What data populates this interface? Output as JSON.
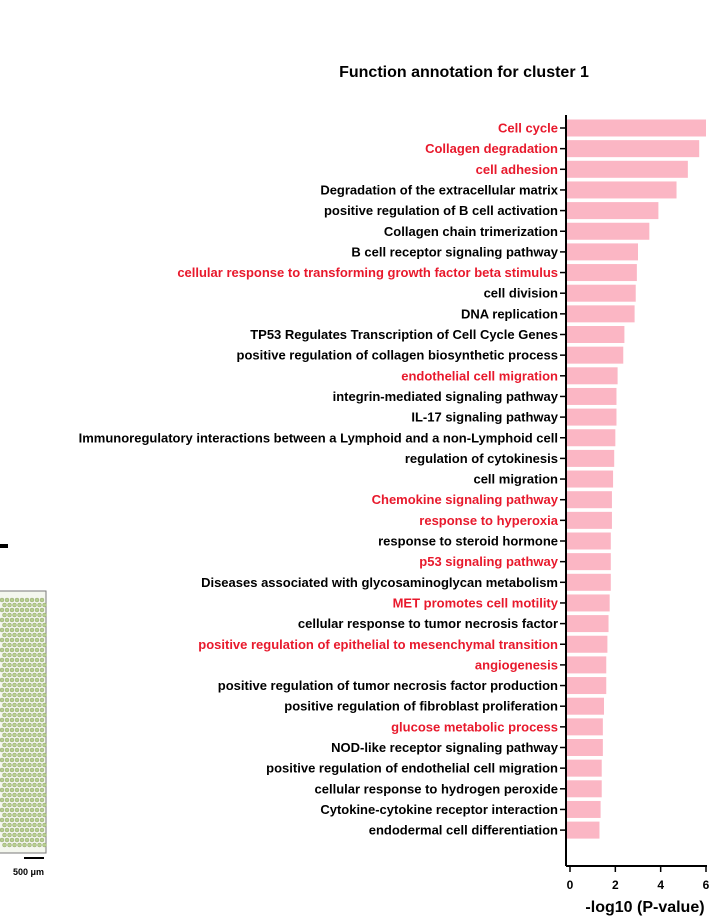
{
  "colors": {
    "bar": "#fbb6c4",
    "highlight_text": "#e8192c",
    "normal_text": "#000000",
    "inset_spots": "#b7cf8e",
    "inset_border": "#7a7a7a"
  },
  "inset": {
    "scale_label": "500 μm"
  },
  "chart_data": {
    "type": "bar",
    "orientation": "horizontal",
    "title": "Function annotation for cluster 1",
    "xlabel": "-log10 (P-value)",
    "ylabel": "",
    "xlim": [
      0,
      6
    ],
    "xticks": [
      "0",
      "2",
      "4",
      "6"
    ],
    "categories": [
      "Cell cycle",
      "Collagen degradation",
      "cell adhesion",
      "Degradation of the extracellular matrix",
      "positive regulation of B cell activation",
      "Collagen chain trimerization",
      "B cell receptor signaling pathway",
      "cellular response to transforming growth factor beta stimulus",
      "cell division",
      "DNA replication",
      "TP53 Regulates Transcription of Cell Cycle Genes",
      "positive regulation of collagen biosynthetic process",
      "endothelial cell migration",
      "integrin-mediated signaling pathway",
      "IL-17 signaling pathway",
      "Immunoregulatory interactions between a Lymphoid and a non-Lymphoid cell",
      "regulation of cytokinesis",
      "cell migration",
      "Chemokine signaling pathway",
      "response to hyperoxia",
      "response to steroid hormone",
      "p53 signaling pathway",
      "Diseases associated with glycosaminoglycan metabolism",
      "MET promotes cell motility",
      "cellular response to tumor necrosis factor",
      "positive regulation of epithelial to mesenchymal transition",
      "angiogenesis",
      "positive regulation of tumor necrosis factor production",
      "positive regulation of fibroblast proliferation",
      "glucose metabolic process",
      "NOD-like receptor signaling pathway",
      "positive regulation of endothelial cell migration",
      "cellular response to hydrogen peroxide",
      "Cytokine-cytokine receptor interaction",
      "endodermal cell differentiation"
    ],
    "values": [
      6.0,
      5.7,
      5.2,
      4.7,
      3.9,
      3.5,
      3.0,
      2.95,
      2.9,
      2.85,
      2.4,
      2.35,
      2.1,
      2.05,
      2.05,
      2.0,
      1.95,
      1.9,
      1.85,
      1.85,
      1.8,
      1.8,
      1.8,
      1.75,
      1.7,
      1.65,
      1.6,
      1.6,
      1.5,
      1.45,
      1.45,
      1.4,
      1.4,
      1.35,
      1.3
    ],
    "highlighted": [
      true,
      true,
      true,
      false,
      false,
      false,
      false,
      true,
      false,
      false,
      false,
      false,
      true,
      false,
      false,
      false,
      false,
      false,
      true,
      true,
      false,
      true,
      false,
      true,
      false,
      true,
      true,
      false,
      false,
      true,
      false,
      false,
      false,
      false,
      false
    ],
    "grid": false,
    "legend": "none"
  }
}
